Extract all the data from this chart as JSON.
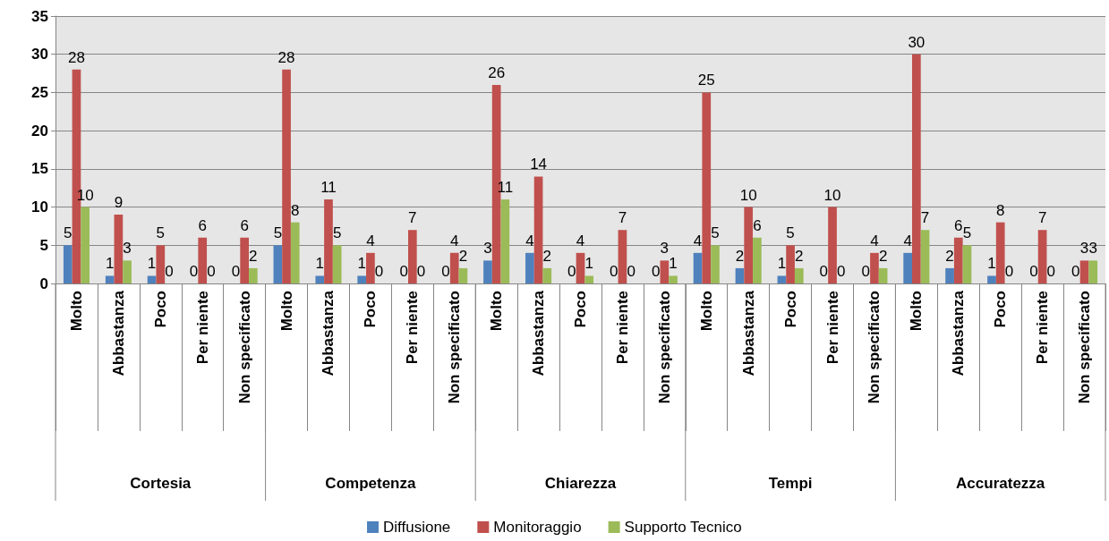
{
  "chart_data": {
    "type": "bar",
    "categories": [
      "Molto",
      "Abbastanza",
      "Poco",
      "Per niente",
      "Non specificato",
      "Molto",
      "Abbastanza",
      "Poco",
      "Per niente",
      "Non specificato",
      "Molto",
      "Abbastanza",
      "Poco",
      "Per niente",
      "Non specificato",
      "Molto",
      "Abbastanza",
      "Poco",
      "Per niente",
      "Non specificato",
      "Molto",
      "Abbastanza",
      "Poco",
      "Per niente",
      "Non specificato"
    ],
    "series": [
      {
        "name": "Diffusione",
        "color": "#4f81bd",
        "values": [
          5,
          1,
          1,
          0,
          0,
          5,
          1,
          1,
          0,
          0,
          3,
          4,
          0,
          0,
          0,
          4,
          2,
          1,
          0,
          0,
          4,
          2,
          1,
          0,
          0
        ]
      },
      {
        "name": "Monitoraggio",
        "color": "#c0504d",
        "values": [
          28,
          9,
          5,
          6,
          6,
          28,
          11,
          4,
          7,
          4,
          26,
          14,
          4,
          7,
          3,
          25,
          10,
          5,
          10,
          4,
          30,
          6,
          8,
          7,
          3
        ]
      },
      {
        "name": "Supporto Tecnico",
        "color": "#9bbb59",
        "values": [
          10,
          3,
          0,
          0,
          2,
          8,
          5,
          0,
          0,
          2,
          11,
          2,
          1,
          0,
          1,
          5,
          6,
          2,
          0,
          2,
          7,
          5,
          0,
          0,
          3
        ]
      }
    ],
    "annotations": [
      "Cortesia",
      "Competenza",
      "Chiarezza",
      "Tempi",
      "Accuratezza"
    ],
    "ylim": [
      0,
      35
    ],
    "yticks": [
      0,
      5,
      10,
      15,
      20,
      25,
      30,
      35
    ],
    "grid": "y",
    "legend": "bottom",
    "data_labels": true
  }
}
